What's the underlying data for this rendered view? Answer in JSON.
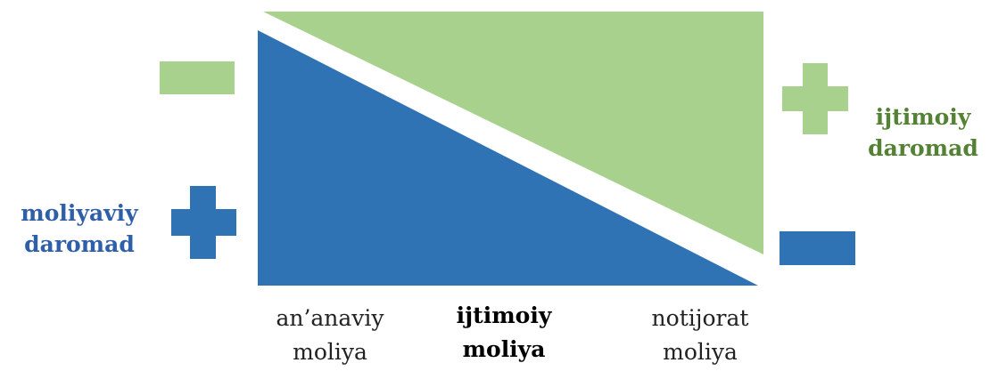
{
  "colors": {
    "financial": "#2f73b5",
    "social": "#a9d18e",
    "financial_text": "#2f5fa8",
    "social_text": "#548235"
  },
  "left_label": {
    "line1": "moliyaviy",
    "line2": "daromad",
    "symbol": "plus"
  },
  "right_label": {
    "line1": "ijtimoiy",
    "line2": "daromad",
    "symbol": "plus"
  },
  "left_top_symbol": "minus",
  "right_bottom_symbol": "minus",
  "bottom_labels": [
    {
      "line1": "an’anaviy",
      "line2": "moliya"
    },
    {
      "line1": "ijtimoiy",
      "line2": "moliya"
    },
    {
      "line1": "notijorat",
      "line2": "moliya"
    }
  ]
}
